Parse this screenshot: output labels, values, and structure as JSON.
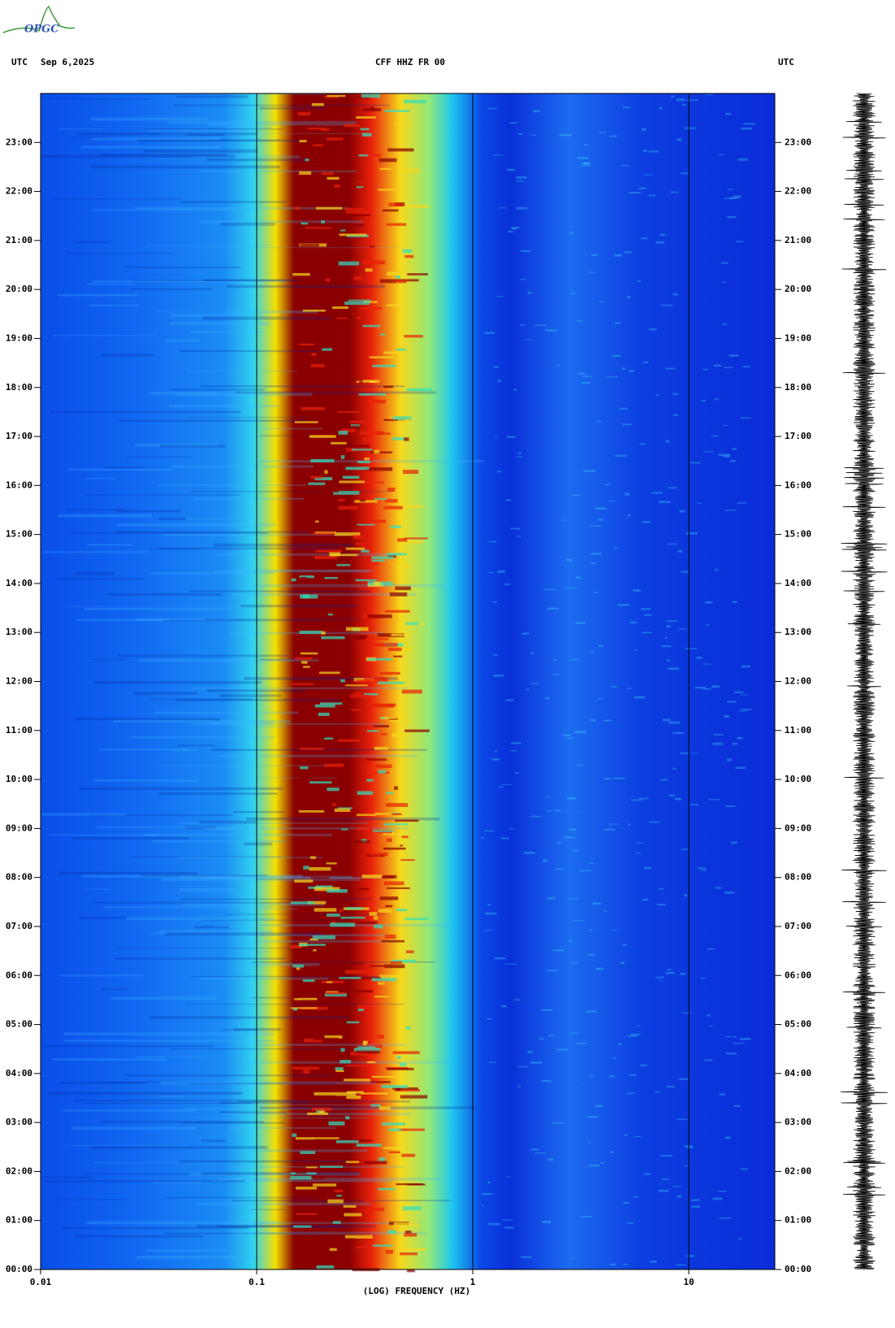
{
  "logo": "OPGC",
  "chart_data": {
    "type": "spectrogram",
    "time_zone_left": "UTC",
    "date": "Sep 6,2025",
    "title": "CFF HHZ FR 00",
    "time_zone_right": "UTC",
    "xlabel": "(LOG) FREQUENCY (HZ)",
    "xscale": "log",
    "xlim": [
      0.01,
      25
    ],
    "xticks": [
      0.01,
      0.1,
      1,
      10
    ],
    "ylim": [
      0,
      24
    ],
    "yticks": [
      {
        "value": 0,
        "label": "00:00"
      },
      {
        "value": 1,
        "label": "01:00"
      },
      {
        "value": 2,
        "label": "02:00"
      },
      {
        "value": 3,
        "label": "03:00"
      },
      {
        "value": 4,
        "label": "04:00"
      },
      {
        "value": 5,
        "label": "05:00"
      },
      {
        "value": 6,
        "label": "06:00"
      },
      {
        "value": 7,
        "label": "07:00"
      },
      {
        "value": 8,
        "label": "08:00"
      },
      {
        "value": 9,
        "label": "09:00"
      },
      {
        "value": 10,
        "label": "10:00"
      },
      {
        "value": 11,
        "label": "11:00"
      },
      {
        "value": 12,
        "label": "12:00"
      },
      {
        "value": 13,
        "label": "13:00"
      },
      {
        "value": 14,
        "label": "14:00"
      },
      {
        "value": 15,
        "label": "15:00"
      },
      {
        "value": 16,
        "label": "16:00"
      },
      {
        "value": 17,
        "label": "17:00"
      },
      {
        "value": 18,
        "label": "18:00"
      },
      {
        "value": 19,
        "label": "19:00"
      },
      {
        "value": 20,
        "label": "20:00"
      },
      {
        "value": 21,
        "label": "21:00"
      },
      {
        "value": 22,
        "label": "22:00"
      },
      {
        "value": 23,
        "label": "23:00"
      }
    ]
  }
}
